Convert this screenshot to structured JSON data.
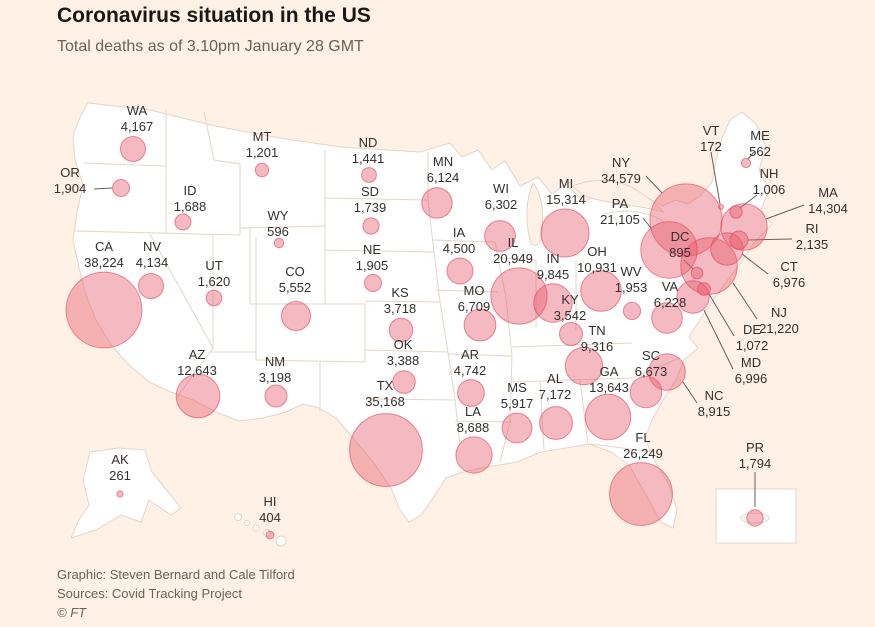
{
  "header": {
    "title": "Coronavirus situation in the US",
    "subtitle": "Total deaths as of 3.10pm January 28 GMT"
  },
  "footer": {
    "credit": "Graphic: Steven Bernard and Cale Tilford",
    "source": "Sources: Covid Tracking Project",
    "copyright": "© FT"
  },
  "colors": {
    "background": "#FFF1E5",
    "land": "#FFFFFF",
    "land_border": "#E4D5C7",
    "bubble_fill": "#E8596B",
    "bubble_stroke": "#DD4257",
    "label_text": "#33302E",
    "title_text": "#1A1817",
    "subtitle_text": "#6B6257",
    "leader_line": "#66605B"
  },
  "chart_data": {
    "type": "bubble-map",
    "title": "Coronavirus situation in the US",
    "subtitle": "Total deaths as of 3.10pm January 28 GMT",
    "metric": "Total deaths",
    "as_of": "3.10pm January 28 GMT",
    "states": [
      {
        "code": "WA",
        "deaths": 4167,
        "label": "4,167"
      },
      {
        "code": "OR",
        "deaths": 1904,
        "label": "1,904"
      },
      {
        "code": "CA",
        "deaths": 38224,
        "label": "38,224"
      },
      {
        "code": "NV",
        "deaths": 4134,
        "label": "4,134"
      },
      {
        "code": "ID",
        "deaths": 1688,
        "label": "1,688"
      },
      {
        "code": "MT",
        "deaths": 1201,
        "label": "1,201"
      },
      {
        "code": "WY",
        "deaths": 596,
        "label": "596"
      },
      {
        "code": "UT",
        "deaths": 1620,
        "label": "1,620"
      },
      {
        "code": "CO",
        "deaths": 5552,
        "label": "5,552"
      },
      {
        "code": "AZ",
        "deaths": 12643,
        "label": "12,643"
      },
      {
        "code": "NM",
        "deaths": 3198,
        "label": "3,198"
      },
      {
        "code": "ND",
        "deaths": 1441,
        "label": "1,441"
      },
      {
        "code": "SD",
        "deaths": 1739,
        "label": "1,739"
      },
      {
        "code": "NE",
        "deaths": 1905,
        "label": "1,905"
      },
      {
        "code": "KS",
        "deaths": 3718,
        "label": "3,718"
      },
      {
        "code": "OK",
        "deaths": 3388,
        "label": "3,388"
      },
      {
        "code": "TX",
        "deaths": 35168,
        "label": "35,168"
      },
      {
        "code": "MN",
        "deaths": 6124,
        "label": "6,124"
      },
      {
        "code": "IA",
        "deaths": 4500,
        "label": "4,500"
      },
      {
        "code": "MO",
        "deaths": 6709,
        "label": "6,709"
      },
      {
        "code": "AR",
        "deaths": 4742,
        "label": "4,742"
      },
      {
        "code": "LA",
        "deaths": 8688,
        "label": "8,688"
      },
      {
        "code": "WI",
        "deaths": 6302,
        "label": "6,302"
      },
      {
        "code": "IL",
        "deaths": 20949,
        "label": "20,949"
      },
      {
        "code": "MS",
        "deaths": 5917,
        "label": "5,917"
      },
      {
        "code": "MI",
        "deaths": 15314,
        "label": "15,314"
      },
      {
        "code": "IN",
        "deaths": 9845,
        "label": "9,845"
      },
      {
        "code": "KY",
        "deaths": 3542,
        "label": "3,542"
      },
      {
        "code": "TN",
        "deaths": 9316,
        "label": "9,316"
      },
      {
        "code": "OH",
        "deaths": 10931,
        "label": "10,931"
      },
      {
        "code": "AL",
        "deaths": 7172,
        "label": "7,172"
      },
      {
        "code": "GA",
        "deaths": 13643,
        "label": "13,643"
      },
      {
        "code": "FL",
        "deaths": 26249,
        "label": "26,249"
      },
      {
        "code": "SC",
        "deaths": 6673,
        "label": "6,673"
      },
      {
        "code": "NC",
        "deaths": 8915,
        "label": "8,915"
      },
      {
        "code": "WV",
        "deaths": 1953,
        "label": "1,953"
      },
      {
        "code": "VA",
        "deaths": 6228,
        "label": "6,228"
      },
      {
        "code": "NY",
        "deaths": 34579,
        "label": "34,579"
      },
      {
        "code": "PA",
        "deaths": 21105,
        "label": "21,105"
      },
      {
        "code": "NJ",
        "deaths": 21220,
        "label": "21,220"
      },
      {
        "code": "MD",
        "deaths": 6996,
        "label": "6,996"
      },
      {
        "code": "DE",
        "deaths": 1072,
        "label": "1,072"
      },
      {
        "code": "DC",
        "deaths": 895,
        "label": "895"
      },
      {
        "code": "CT",
        "deaths": 6976,
        "label": "6,976"
      },
      {
        "code": "RI",
        "deaths": 2135,
        "label": "2,135"
      },
      {
        "code": "MA",
        "deaths": 14304,
        "label": "14,304"
      },
      {
        "code": "NH",
        "deaths": 1006,
        "label": "1,006"
      },
      {
        "code": "VT",
        "deaths": 172,
        "label": "172"
      },
      {
        "code": "ME",
        "deaths": 562,
        "label": "562"
      },
      {
        "code": "AK",
        "deaths": 261,
        "label": "261"
      },
      {
        "code": "HI",
        "deaths": 404,
        "label": "404"
      },
      {
        "code": "PR",
        "deaths": 1794,
        "label": "1,794"
      }
    ]
  }
}
